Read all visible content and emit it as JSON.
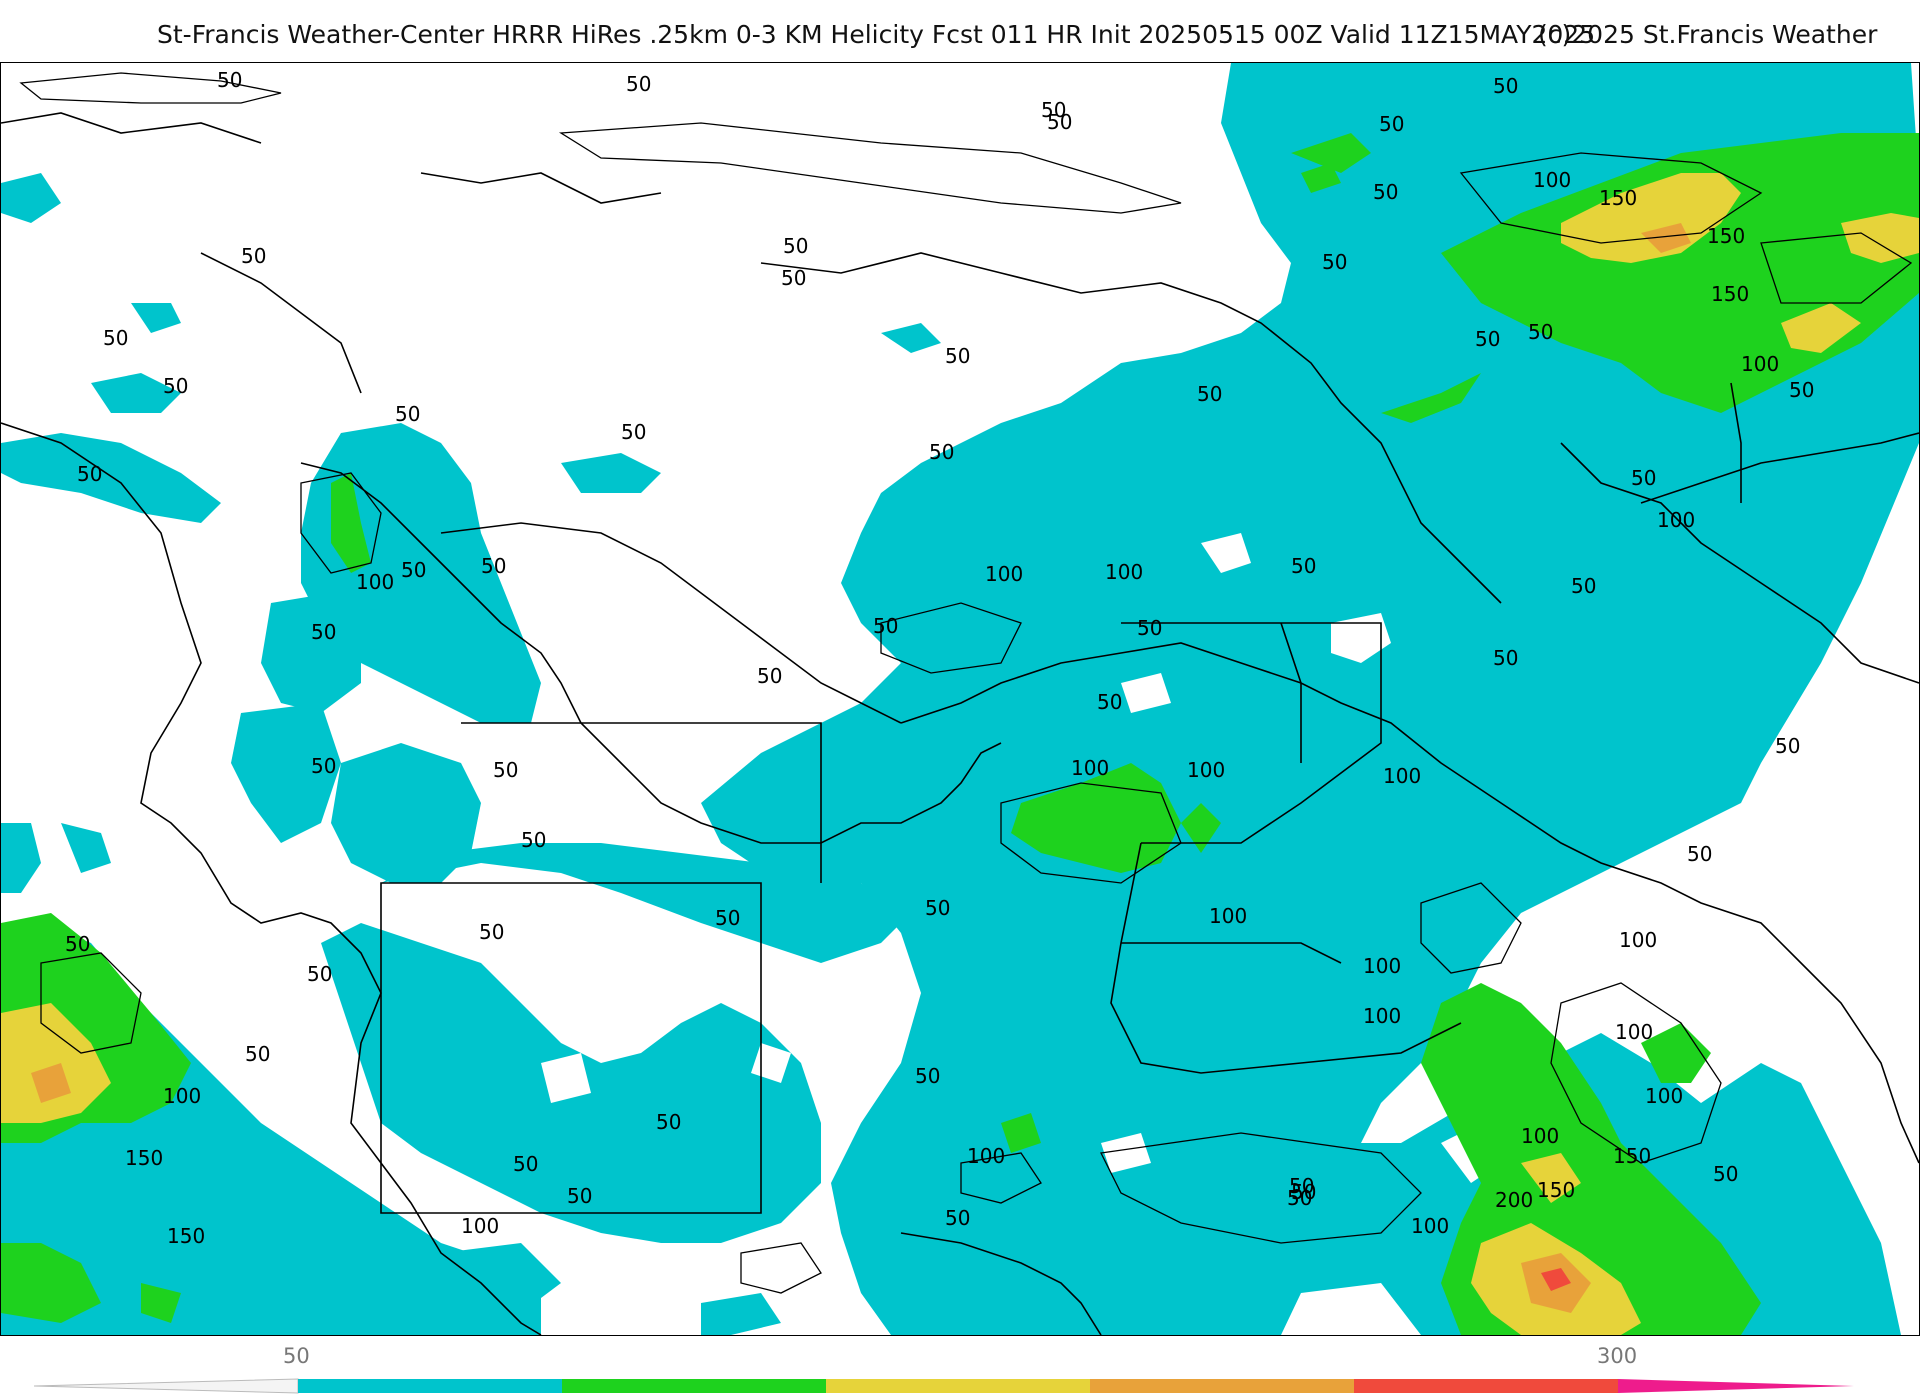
{
  "header": {
    "title": "St-Francis Weather-Center HRRR HiRes .25km 0-3 KM Helicity Fcst 011 HR Init 20250515 00Z  Valid 11Z15MAY2025",
    "copyright": "(c)2025 St.Francis Weather"
  },
  "map": {
    "product": "0-3 KM Helicity",
    "model": "HRRR HiRes .25km",
    "forecast_hour": "011",
    "init": "20250515 00Z",
    "valid": "11Z15MAY2025",
    "contour_labels": [
      "50",
      "100",
      "150",
      "200"
    ],
    "colors": {
      "cyan": "#00c4cc",
      "green": "#1ed21e",
      "yellow": "#e6d33a",
      "orange": "#e8a23a",
      "red": "#f04a3c",
      "magenta": "#ee1c8c"
    }
  },
  "colorbar": {
    "tick_low": "50",
    "tick_high": "300",
    "segments": [
      "#00c4cc",
      "#1ed21e",
      "#e6d33a",
      "#e8a23a",
      "#f04a3c",
      "#ee1c8c"
    ]
  }
}
